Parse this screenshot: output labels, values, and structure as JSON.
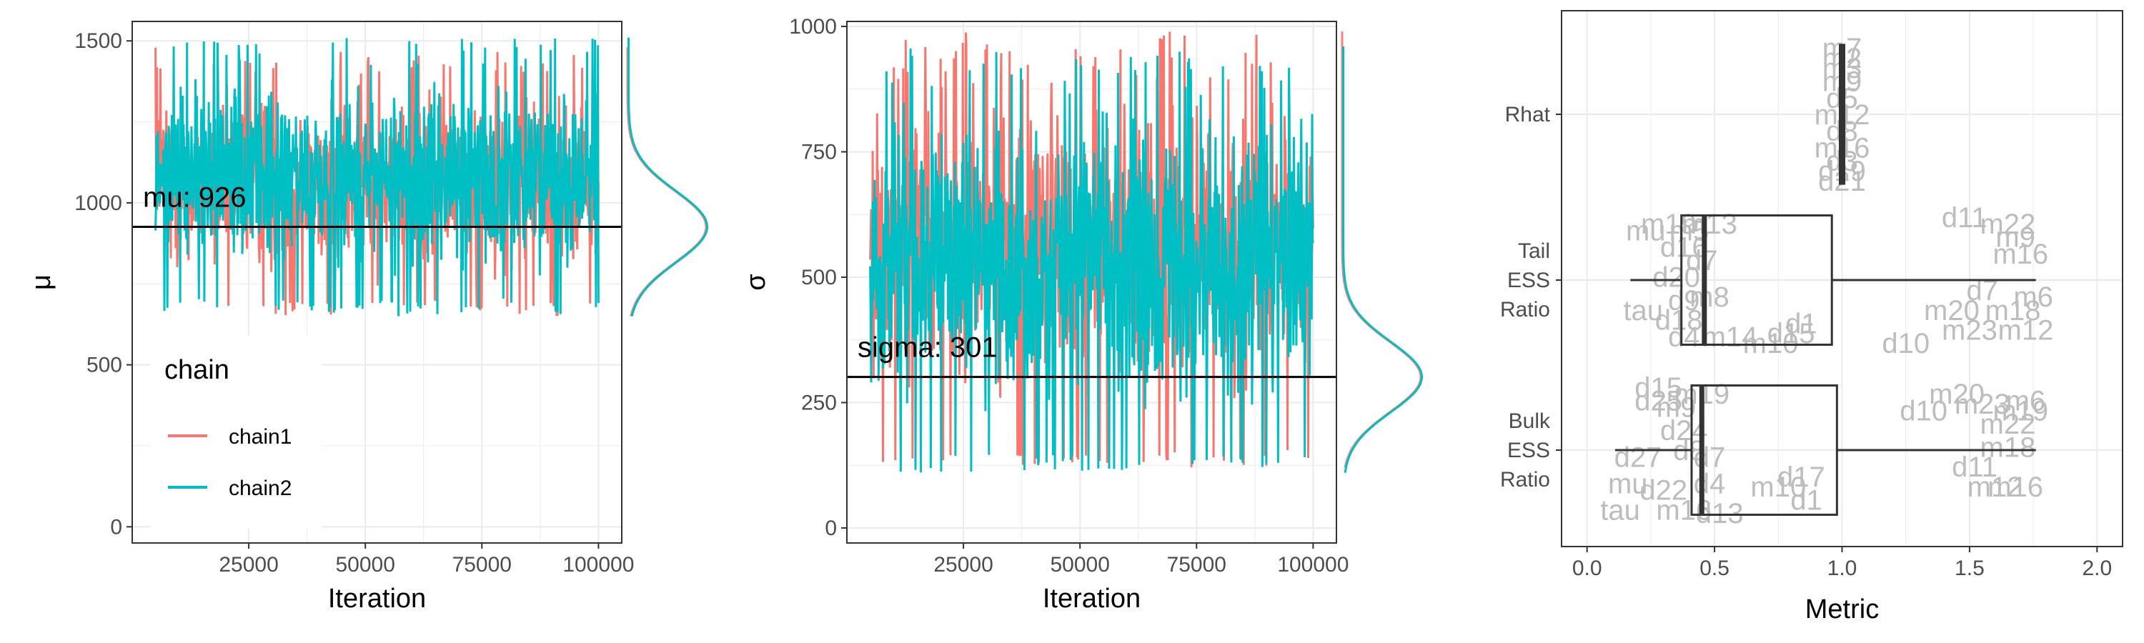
{
  "colors": {
    "chain1": "#F8766D",
    "chain2": "#00BFC4",
    "grid": "#ebebeb",
    "panel_border": "#333333",
    "label_gray": "#bdbdbd"
  },
  "chart_data": [
    {
      "type": "line",
      "title": "",
      "xlabel": "Iteration",
      "ylabel": "μ",
      "xlim": [
        0,
        105000
      ],
      "ylim": [
        -50,
        1560
      ],
      "x_ticks": [
        "25000",
        "50000",
        "75000",
        "100000"
      ],
      "x_tick_values": [
        25000,
        50000,
        75000,
        100000
      ],
      "y_ticks": [
        "0",
        "500",
        "1000",
        "1500"
      ],
      "y_tick_values": [
        0,
        500,
        1000,
        1500
      ],
      "x_range": [
        5000,
        100000
      ],
      "series": [
        {
          "name": "chain1",
          "color": "#F8766D",
          "min": 650,
          "max": 1480,
          "mean": 926
        },
        {
          "name": "chain2",
          "color": "#00BFC4",
          "min": 650,
          "max": 1510,
          "mean": 926
        }
      ],
      "hline": {
        "value": 926,
        "label": "mu: 926"
      },
      "density": {
        "peak_value": 926,
        "spread": 110
      },
      "legend": {
        "title": "chain",
        "entries": [
          "chain1",
          "chain2"
        ],
        "position": "bottom-left"
      },
      "grid": true
    },
    {
      "type": "line",
      "title": "",
      "xlabel": "Iteration",
      "ylabel": "σ",
      "xlim": [
        0,
        105000
      ],
      "ylim": [
        -30,
        1010
      ],
      "x_ticks": [
        "25000",
        "50000",
        "75000",
        "100000"
      ],
      "x_tick_values": [
        25000,
        50000,
        75000,
        100000
      ],
      "y_ticks": [
        "0",
        "250",
        "500",
        "750",
        "1000"
      ],
      "y_tick_values": [
        0,
        250,
        500,
        750,
        1000
      ],
      "x_range": [
        5000,
        100000
      ],
      "series": [
        {
          "name": "chain1",
          "color": "#F8766D",
          "min": 120,
          "max": 990,
          "mean": 301
        },
        {
          "name": "chain2",
          "color": "#00BFC4",
          "min": 110,
          "max": 960,
          "mean": 301
        }
      ],
      "hline": {
        "value": 301,
        "label": "sigma: 301"
      },
      "density": {
        "peak_value": 301,
        "spread": 70
      },
      "grid": true
    },
    {
      "type": "box",
      "title": "",
      "xlabel": "Metric",
      "ylabel": "",
      "xlim": [
        -0.1,
        2.1
      ],
      "x_ticks": [
        "0.0",
        "0.5",
        "1.0",
        "1.5",
        "2.0"
      ],
      "x_tick_values": [
        0,
        0.5,
        1.0,
        1.5,
        2.0
      ],
      "categories": [
        "Rhat",
        "Tail ESS Ratio",
        "Bulk ESS Ratio"
      ],
      "category_lines": [
        [
          "Rhat"
        ],
        [
          "Tail",
          "ESS",
          "Ratio"
        ],
        [
          "Bulk",
          "ESS",
          "Ratio"
        ]
      ],
      "boxes": [
        {
          "category": "Rhat",
          "whisker_low": 1.0,
          "q1": 1.0,
          "median": 1.0,
          "q3": 1.0,
          "whisker_high": 1.0
        },
        {
          "category": "Tail ESS Ratio",
          "whisker_low": 0.17,
          "q1": 0.37,
          "median": 0.46,
          "q3": 0.96,
          "whisker_high": 1.76
        },
        {
          "category": "Bulk ESS Ratio",
          "whisker_low": 0.11,
          "q1": 0.41,
          "median": 0.45,
          "q3": 0.98,
          "whisker_high": 1.76
        }
      ],
      "point_labels": [
        {
          "category": "Rhat",
          "labels": [
            {
              "text": "m7",
              "x": 1.0,
              "dy": -0.4
            },
            {
              "text": "m2",
              "x": 1.0,
              "dy": -0.34
            },
            {
              "text": "m3",
              "x": 1.0,
              "dy": -0.28
            },
            {
              "text": "m9",
              "x": 1.0,
              "dy": -0.2
            },
            {
              "text": "d5",
              "x": 1.0,
              "dy": -0.1
            },
            {
              "text": "m12",
              "x": 1.0,
              "dy": 0.0
            },
            {
              "text": "d8",
              "x": 1.0,
              "dy": 0.1
            },
            {
              "text": "m16",
              "x": 1.0,
              "dy": 0.2
            },
            {
              "text": "d3",
              "x": 1.0,
              "dy": 0.28
            },
            {
              "text": "d19",
              "x": 1.0,
              "dy": 0.34
            },
            {
              "text": "d21",
              "x": 1.0,
              "dy": 0.4
            }
          ]
        },
        {
          "category": "Tail ESS Ratio",
          "labels": [
            {
              "text": "mu",
              "x": 0.23,
              "dy": -0.3
            },
            {
              "text": "m19",
              "x": 0.32,
              "dy": -0.34
            },
            {
              "text": "m13",
              "x": 0.48,
              "dy": -0.34
            },
            {
              "text": "m5",
              "x": 0.4,
              "dy": -0.3
            },
            {
              "text": "d16",
              "x": 0.38,
              "dy": -0.2
            },
            {
              "text": "d7",
              "x": 0.45,
              "dy": -0.12
            },
            {
              "text": "d20",
              "x": 0.35,
              "dy": -0.02
            },
            {
              "text": "m8",
              "x": 0.48,
              "dy": 0.1
            },
            {
              "text": "d9",
              "x": 0.38,
              "dy": 0.12
            },
            {
              "text": "tau",
              "x": 0.22,
              "dy": 0.18
            },
            {
              "text": "d18",
              "x": 0.36,
              "dy": 0.24
            },
            {
              "text": "d4",
              "x": 0.38,
              "dy": 0.34
            },
            {
              "text": "m14",
              "x": 0.56,
              "dy": 0.34
            },
            {
              "text": "m10",
              "x": 0.72,
              "dy": 0.38
            },
            {
              "text": "d15",
              "x": 0.8,
              "dy": 0.32
            },
            {
              "text": "d1",
              "x": 0.84,
              "dy": 0.26
            },
            {
              "text": "d11",
              "x": 1.48,
              "dy": -0.38
            },
            {
              "text": "m22",
              "x": 1.65,
              "dy": -0.34
            },
            {
              "text": "m9",
              "x": 1.68,
              "dy": -0.26
            },
            {
              "text": "m16",
              "x": 1.7,
              "dy": -0.16
            },
            {
              "text": "d7",
              "x": 1.55,
              "dy": 0.06
            },
            {
              "text": "m6",
              "x": 1.75,
              "dy": 0.1
            },
            {
              "text": "m20",
              "x": 1.43,
              "dy": 0.18
            },
            {
              "text": "m18",
              "x": 1.67,
              "dy": 0.18
            },
            {
              "text": "m23",
              "x": 1.5,
              "dy": 0.3
            },
            {
              "text": "m12",
              "x": 1.72,
              "dy": 0.3
            },
            {
              "text": "d10",
              "x": 1.25,
              "dy": 0.38
            }
          ]
        },
        {
          "category": "Bulk ESS Ratio",
          "labels": [
            {
              "text": "d15",
              "x": 0.28,
              "dy": -0.38
            },
            {
              "text": "d25",
              "x": 0.28,
              "dy": -0.3
            },
            {
              "text": "m19",
              "x": 0.45,
              "dy": -0.34
            },
            {
              "text": "m9",
              "x": 0.35,
              "dy": -0.26
            },
            {
              "text": "d24",
              "x": 0.38,
              "dy": -0.12
            },
            {
              "text": "d27",
              "x": 0.2,
              "dy": 0.04
            },
            {
              "text": "d8",
              "x": 0.4,
              "dy": 0.0
            },
            {
              "text": "d7",
              "x": 0.48,
              "dy": 0.04
            },
            {
              "text": "mu",
              "x": 0.16,
              "dy": 0.2
            },
            {
              "text": "d22",
              "x": 0.3,
              "dy": 0.24
            },
            {
              "text": "d4",
              "x": 0.48,
              "dy": 0.2
            },
            {
              "text": "tau",
              "x": 0.13,
              "dy": 0.36
            },
            {
              "text": "m16",
              "x": 0.38,
              "dy": 0.36
            },
            {
              "text": "d13",
              "x": 0.52,
              "dy": 0.38
            },
            {
              "text": "m10",
              "x": 0.75,
              "dy": 0.22
            },
            {
              "text": "d17",
              "x": 0.84,
              "dy": 0.16
            },
            {
              "text": "d1",
              "x": 0.86,
              "dy": 0.3
            },
            {
              "text": "m20",
              "x": 1.45,
              "dy": -0.34
            },
            {
              "text": "m23",
              "x": 1.55,
              "dy": -0.28
            },
            {
              "text": "m6",
              "x": 1.72,
              "dy": -0.3
            },
            {
              "text": "d10",
              "x": 1.32,
              "dy": -0.24
            },
            {
              "text": "m19",
              "x": 1.7,
              "dy": -0.24
            },
            {
              "text": "m22",
              "x": 1.65,
              "dy": -0.16
            },
            {
              "text": "m18",
              "x": 1.65,
              "dy": -0.02
            },
            {
              "text": "d11",
              "x": 1.52,
              "dy": 0.1
            },
            {
              "text": "m12",
              "x": 1.6,
              "dy": 0.22
            },
            {
              "text": "m16",
              "x": 1.68,
              "dy": 0.22
            }
          ]
        }
      ],
      "grid": true
    }
  ]
}
